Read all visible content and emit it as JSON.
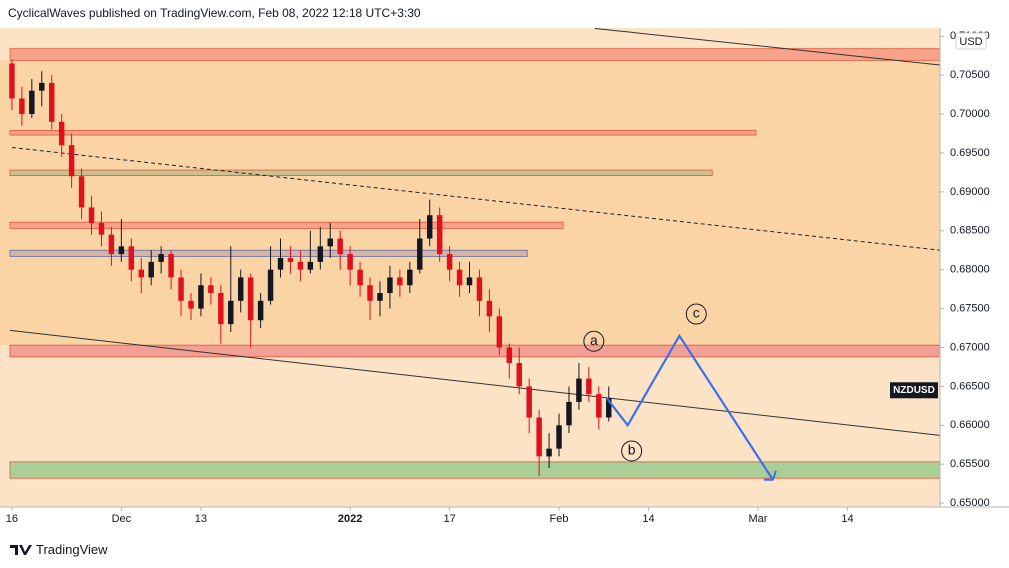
{
  "header": "CyclicalWaves published on TradingView.com, Feb 08, 2022 12:18 UTC+3:30",
  "footer": "TradingView",
  "chart_data": {
    "type": "candlestick",
    "x": [
      0,
      1,
      2,
      3,
      4,
      5,
      6,
      7,
      8,
      9,
      10,
      11,
      12,
      13,
      14,
      15,
      16,
      17,
      18,
      19,
      20,
      21,
      22,
      23,
      24,
      25,
      26,
      27,
      28,
      29,
      30,
      31,
      32,
      33,
      34,
      35,
      36,
      37,
      38,
      39,
      40,
      41,
      42,
      43,
      44,
      45,
      46,
      47,
      48,
      49,
      50,
      51,
      52,
      53,
      54,
      55,
      56,
      57,
      58,
      59,
      60
    ],
    "open": [
      0.7065,
      0.702,
      0.7,
      0.703,
      0.704,
      0.699,
      0.696,
      0.692,
      0.688,
      0.686,
      0.6845,
      0.682,
      0.683,
      0.68,
      0.679,
      0.681,
      0.682,
      0.679,
      0.676,
      0.675,
      0.678,
      0.677,
      0.673,
      0.676,
      0.679,
      0.6735,
      0.676,
      0.68,
      0.6815,
      0.681,
      0.68,
      0.681,
      0.683,
      0.684,
      0.682,
      0.68,
      0.678,
      0.676,
      0.677,
      0.679,
      0.678,
      0.68,
      0.684,
      0.687,
      0.682,
      0.68,
      0.678,
      0.679,
      0.676,
      0.674,
      0.67,
      0.668,
      0.665,
      0.661,
      0.656,
      0.657,
      0.66,
      0.663,
      0.666,
      0.664,
      0.661
    ],
    "high": [
      0.707,
      0.7035,
      0.7045,
      0.7055,
      0.705,
      0.7,
      0.6975,
      0.693,
      0.6895,
      0.6875,
      0.6855,
      0.6865,
      0.684,
      0.6815,
      0.6825,
      0.683,
      0.6825,
      0.68,
      0.677,
      0.6795,
      0.679,
      0.678,
      0.683,
      0.68,
      0.6795,
      0.677,
      0.683,
      0.684,
      0.683,
      0.6825,
      0.685,
      0.6855,
      0.686,
      0.685,
      0.683,
      0.681,
      0.679,
      0.6785,
      0.6805,
      0.68,
      0.681,
      0.6865,
      0.689,
      0.688,
      0.683,
      0.681,
      0.681,
      0.68,
      0.6775,
      0.675,
      0.6705,
      0.67,
      0.666,
      0.662,
      0.659,
      0.6615,
      0.665,
      0.668,
      0.6675,
      0.665,
      0.665
    ],
    "low": [
      0.7005,
      0.6985,
      0.6995,
      0.701,
      0.698,
      0.6945,
      0.6905,
      0.6865,
      0.6845,
      0.683,
      0.6805,
      0.681,
      0.6785,
      0.677,
      0.678,
      0.6795,
      0.6775,
      0.674,
      0.6735,
      0.674,
      0.6755,
      0.6705,
      0.672,
      0.6745,
      0.67,
      0.6725,
      0.6755,
      0.679,
      0.6795,
      0.6785,
      0.6795,
      0.68,
      0.6815,
      0.68,
      0.678,
      0.6765,
      0.6735,
      0.674,
      0.675,
      0.6765,
      0.677,
      0.6795,
      0.683,
      0.681,
      0.6785,
      0.6765,
      0.677,
      0.674,
      0.672,
      0.669,
      0.666,
      0.664,
      0.659,
      0.6535,
      0.6545,
      0.656,
      0.659,
      0.662,
      0.663,
      0.6595,
      0.6605
    ],
    "close": [
      0.702,
      0.7,
      0.703,
      0.704,
      0.699,
      0.696,
      0.692,
      0.688,
      0.686,
      0.6845,
      0.682,
      0.683,
      0.68,
      0.679,
      0.681,
      0.682,
      0.679,
      0.676,
      0.675,
      0.678,
      0.677,
      0.673,
      0.676,
      0.679,
      0.6735,
      0.676,
      0.68,
      0.6815,
      0.681,
      0.68,
      0.681,
      0.683,
      0.684,
      0.682,
      0.68,
      0.678,
      0.676,
      0.677,
      0.679,
      0.678,
      0.68,
      0.684,
      0.687,
      0.682,
      0.68,
      0.678,
      0.679,
      0.676,
      0.674,
      0.67,
      0.668,
      0.665,
      0.661,
      0.656,
      0.657,
      0.66,
      0.663,
      0.666,
      0.664,
      0.661,
      0.6635
    ],
    "up_color": "#131722",
    "down_color": "#e0101c",
    "xlim": [
      -1.2,
      93.3
    ],
    "xticks": [
      {
        "value": 0,
        "label": "16"
      },
      {
        "value": 11,
        "label": "Dec"
      },
      {
        "value": 19,
        "label": "13"
      },
      {
        "value": 34,
        "label": "2022"
      },
      {
        "value": 44,
        "label": "17"
      },
      {
        "value": 55,
        "label": "Feb"
      },
      {
        "value": 64,
        "label": "14"
      },
      {
        "value": 75,
        "label": "Mar"
      },
      {
        "value": 84,
        "label": "14"
      }
    ],
    "ylim": [
      0.6495,
      0.7108
    ],
    "yticks": [
      {
        "value": 0.65,
        "label": "0.65000"
      },
      {
        "value": 0.655,
        "label": "0.65500"
      },
      {
        "value": 0.66,
        "label": "0.66000"
      },
      {
        "value": 0.665,
        "label": "0.66500"
      },
      {
        "value": 0.67,
        "label": "0.67000"
      },
      {
        "value": 0.675,
        "label": "0.67500"
      },
      {
        "value": 0.68,
        "label": "0.68000"
      },
      {
        "value": 0.685,
        "label": "0.68500"
      },
      {
        "value": 0.69,
        "label": "0.69000"
      },
      {
        "value": 0.695,
        "label": "0.69500"
      },
      {
        "value": 0.7,
        "label": "0.70000"
      },
      {
        "value": 0.705,
        "label": "0.70500"
      },
      {
        "value": 0.71,
        "label": "0.71000"
      }
    ],
    "axis_unit": "USD",
    "price_tag": {
      "label": "NZDUSD",
      "value": 0.6645
    },
    "zones": [
      {
        "low": 0.7069,
        "high": 0.7084,
        "color": "#f7a38a"
      },
      {
        "low": 0.6973,
        "high": 0.6979,
        "x_end": 74.8,
        "color": "#f7a38a"
      },
      {
        "low": 0.6921,
        "high": 0.6928,
        "x_end": 70.4,
        "color": "#c9c28f"
      },
      {
        "low": 0.6853,
        "high": 0.6861,
        "x_end": 55.4,
        "color": "#f7a38a"
      },
      {
        "low": 0.6817,
        "high": 0.6825,
        "x_end": 51.8,
        "color": "#d8b2a3"
      },
      {
        "low": 0.6688,
        "high": 0.6703,
        "color": "#f2a096"
      },
      {
        "low": 0.6532,
        "high": 0.6553,
        "color": "#a9cf96"
      }
    ],
    "trendlines": [
      {
        "x": [
          58.6,
          93.3
        ],
        "y": [
          0.711,
          0.7063
        ],
        "color": "#333333",
        "dashed": false
      },
      {
        "x": [
          0,
          93.3
        ],
        "y": [
          0.6957,
          0.6825
        ],
        "color": "#222222",
        "dashed": true
      },
      {
        "x": [
          -0.2,
          93.3
        ],
        "y": [
          0.6722,
          0.6587
        ],
        "color": "#333333",
        "dashed": false
      }
    ],
    "projection": {
      "x": [
        59.8,
        61.9,
        67.1,
        76.5
      ],
      "y": [
        0.6635,
        0.66,
        0.6715,
        0.653
      ],
      "color": "#3b6ff0"
    },
    "wave_labels": [
      {
        "text": "a",
        "x": 58.5,
        "y": 0.6708
      },
      {
        "text": "b",
        "x": 62.3,
        "y": 0.6567
      },
      {
        "text": "c",
        "x": 68.8,
        "y": 0.6743
      }
    ]
  }
}
